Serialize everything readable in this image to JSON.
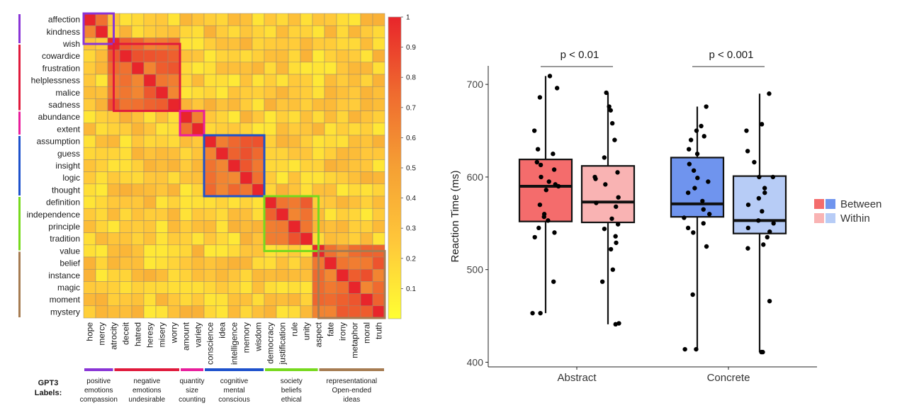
{
  "chart_data": [
    {
      "type": "heatmap",
      "title": "",
      "row_labels": [
        "affection",
        "kindness",
        "wish",
        "cowardice",
        "frustration",
        "helplessness",
        "malice",
        "sadness",
        "abundance",
        "extent",
        "assumption",
        "guess",
        "insight",
        "logic",
        "thought",
        "definition",
        "independence",
        "principle",
        "tradition",
        "value",
        "belief",
        "instance",
        "magic",
        "moment",
        "mystery"
      ],
      "column_labels": [
        "hope",
        "mercy",
        "atrocity",
        "deceit",
        "hatred",
        "heresy",
        "misery",
        "worry",
        "amount",
        "variety",
        "conscience",
        "idea",
        "intelligence",
        "memory",
        "wisdom",
        "democracy",
        "justification",
        "rule",
        "unity",
        "aspect",
        "fate",
        "irony",
        "metaphor",
        "moral",
        "truth"
      ],
      "colorbar": {
        "min": 0,
        "max": 1,
        "ticks": [
          "1",
          "0.9",
          "0.8",
          "0.7",
          "0.6",
          "0.5",
          "0.4",
          "0.3",
          "0.2",
          "0.1"
        ],
        "colors": [
          "#ffff33",
          "#ffc83a",
          "#f5a034",
          "#ef6a2f",
          "#e8252b"
        ]
      },
      "clusters": [
        {
          "name": "positive emotions compassion",
          "label_lines": [
            "positive",
            "emotions",
            "compassion"
          ],
          "color": "#8a35d6",
          "start": 0,
          "size": 2.5
        },
        {
          "name": "negative emotions undesirable",
          "label_lines": [
            "negative",
            "emotions",
            "undesirable"
          ],
          "color": "#e01a3c",
          "start": 2.5,
          "size": 5.5
        },
        {
          "name": "quantity size counting",
          "label_lines": [
            "quantity",
            "size",
            "counting"
          ],
          "color": "#e81e9c",
          "start": 8,
          "size": 2
        },
        {
          "name": "cognitive mental conscious",
          "label_lines": [
            "cognitive",
            "mental",
            "conscious"
          ],
          "color": "#1e52cc",
          "start": 10,
          "size": 5
        },
        {
          "name": "society beliefs ethical",
          "label_lines": [
            "society",
            "beliefs",
            "ethical"
          ],
          "color": "#77d91e",
          "start": 15,
          "size": 4.5
        },
        {
          "name": "representational Open-ended ideas",
          "label_lines": [
            "representational",
            "Open-ended",
            "ideas"
          ],
          "color": "#a67c52",
          "start": 19.5,
          "size": 5.5
        }
      ],
      "gpt3_label": [
        "GPT3",
        "Labels:"
      ]
    },
    {
      "type": "box",
      "ylabel": "Reaction Time (ms)",
      "xlabel": "",
      "ylim": [
        395,
        720
      ],
      "yticks": [
        "400",
        "500",
        "600",
        "700"
      ],
      "categories": [
        "Abstract",
        "Concrete"
      ],
      "legend": {
        "position": "right",
        "entries": [
          "Between",
          "Within"
        ]
      },
      "annotations": [
        {
          "category": "Abstract",
          "text": "p < 0.01"
        },
        {
          "category": "Concrete",
          "text": "p < 0.001"
        }
      ],
      "series": [
        {
          "category": "Abstract",
          "group": "Between",
          "color": "#f46c6c",
          "q1": 552,
          "median": 590,
          "q3": 619,
          "whisker_low": 453,
          "whisker_high": 709,
          "points": [
            709,
            696,
            686,
            650,
            630,
            625,
            616,
            613,
            608,
            600,
            595,
            592,
            590,
            586,
            570,
            560,
            557,
            553,
            545,
            540,
            535,
            487,
            453,
            453
          ]
        },
        {
          "category": "Abstract",
          "group": "Within",
          "color": "#f9b3b3",
          "q1": 551,
          "median": 573,
          "q3": 612,
          "whisker_low": 441,
          "whisker_high": 691,
          "points": [
            691,
            676,
            672,
            658,
            640,
            621,
            605,
            600,
            598,
            592,
            578,
            572,
            568,
            555,
            549,
            544,
            536,
            529,
            522,
            500,
            487,
            442,
            441
          ]
        },
        {
          "category": "Concrete",
          "group": "Between",
          "color": "#6f94ee",
          "q1": 557,
          "median": 571,
          "q3": 621,
          "whisker_low": 414,
          "whisker_high": 676,
          "points": [
            676,
            655,
            650,
            644,
            640,
            630,
            625,
            614,
            607,
            599,
            595,
            588,
            583,
            574,
            565,
            560,
            556,
            550,
            545,
            540,
            525,
            473,
            414,
            414
          ]
        },
        {
          "category": "Concrete",
          "group": "Within",
          "color": "#b7ccf6",
          "q1": 539,
          "median": 553,
          "q3": 601,
          "whisker_low": 411,
          "whisker_high": 690,
          "points": [
            690,
            657,
            650,
            628,
            616,
            600,
            600,
            588,
            583,
            577,
            570,
            563,
            553,
            550,
            545,
            541,
            535,
            527,
            523,
            466,
            411,
            411
          ]
        }
      ]
    }
  ]
}
